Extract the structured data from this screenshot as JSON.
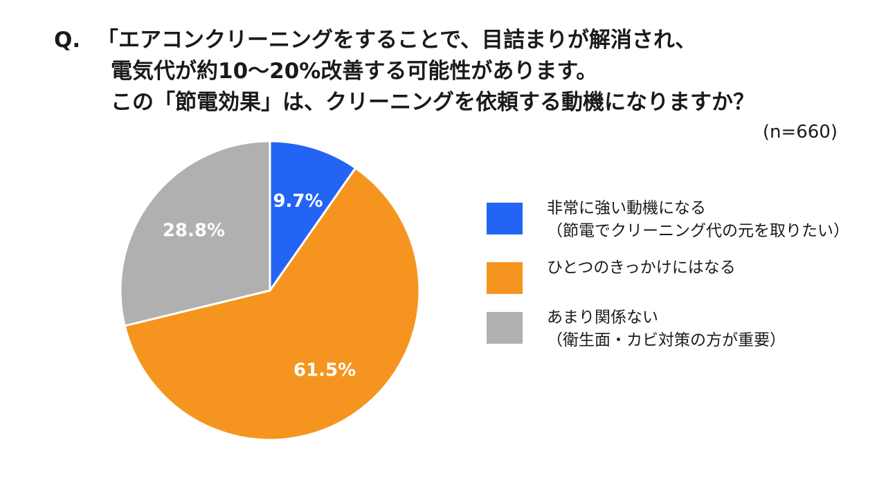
{
  "question": {
    "prefix": "Q.",
    "line1": "「エアコンクリーニングをすることで、目詰まりが解消され、",
    "line2": "電気代が約10～20%改善する可能性があります。",
    "line3": "この「節電効果」は、クリーニングを依頼する動機になりますか？"
  },
  "sample_size": "(n=660)",
  "chart_data": {
    "type": "pie",
    "start_angle_deg": 0,
    "direction": "clockwise",
    "slices": [
      {
        "label": "非常に強い動機になる（節電でクリーニング代の元を取りたい）",
        "value": 9.7,
        "display": "9.7%",
        "color": "#2464f5"
      },
      {
        "label": "ひとつのきっかけにはなる",
        "value": 61.5,
        "display": "61.5%",
        "color": "#f5951f"
      },
      {
        "label": "あまり関係ない（衛生面・カビ対策の方が重要）",
        "value": 28.8,
        "display": "28.8%",
        "color": "#b0b0b0"
      }
    ]
  },
  "legend": [
    {
      "line1": "非常に強い動機になる",
      "line2": "（節電でクリーニング代の元を取りたい）",
      "color": "#2464f5"
    },
    {
      "line1": "ひとつのきっかけにはなる",
      "line2": "",
      "color": "#f5951f"
    },
    {
      "line1": "あまり関係ない",
      "line2": "（衛生面・カビ対策の方が重要）",
      "color": "#b0b0b0"
    }
  ]
}
